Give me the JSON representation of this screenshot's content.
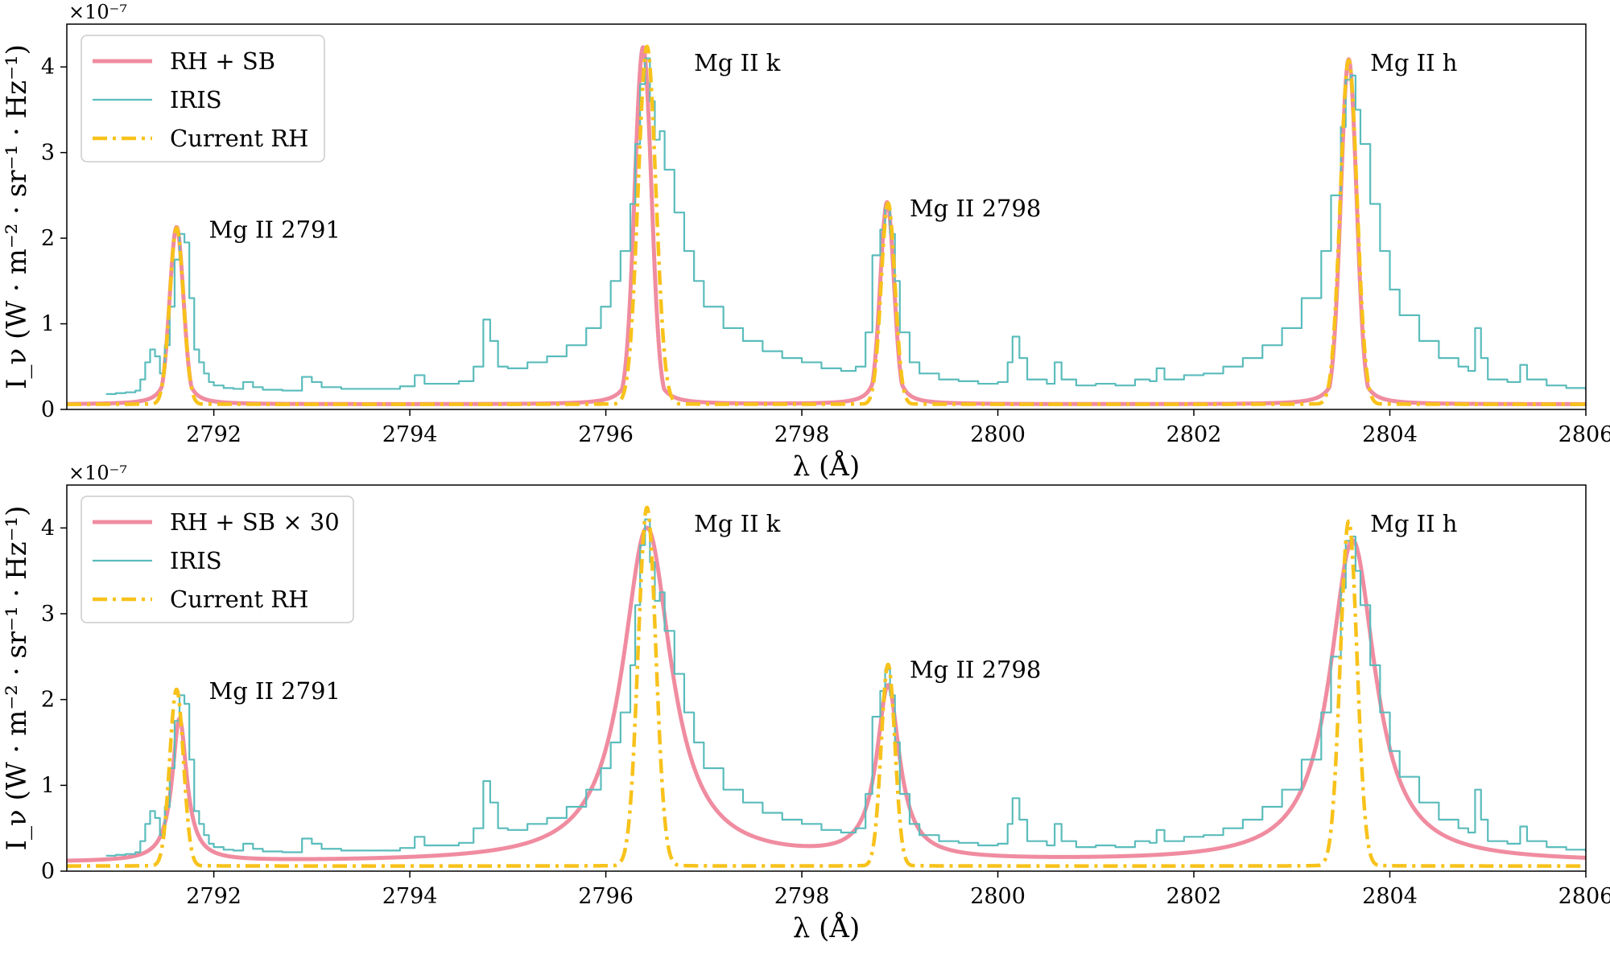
{
  "figure": {
    "xlabel": "λ (Å)",
    "ylabel": "I_ν (W · m⁻² · sr⁻¹ · Hz⁻¹)",
    "multiplier": "×10⁻⁷"
  },
  "chart_data": [
    {
      "type": "line",
      "xlim": [
        2790.5,
        2806
      ],
      "ylim": [
        0,
        4.5
      ],
      "y_scale_factor": "1e-7",
      "xticks": [
        2792,
        2794,
        2796,
        2798,
        2800,
        2802,
        2804,
        2806
      ],
      "yticks": [
        0,
        1,
        2,
        3,
        4
      ],
      "legend_position": "upper-left",
      "annotations": [
        {
          "text": "Mg II 2791",
          "x": 2791.95,
          "y": 2.1
        },
        {
          "text": "Mg II k",
          "x": 2796.9,
          "y": 4.05
        },
        {
          "text": "Mg II 2798",
          "x": 2799.1,
          "y": 2.35
        },
        {
          "text": "Mg II h",
          "x": 2803.8,
          "y": 4.05
        }
      ],
      "series": [
        {
          "name": "RH + SB",
          "color": "#f08ca0",
          "style": "solid",
          "width": 5,
          "model": {
            "base": 0.06,
            "fwhm_scale": 1,
            "lines": [
              {
                "x0": 2791.62,
                "amp": 2.07,
                "g": 0.05,
                "s": 0.07
              },
              {
                "x0": 2796.38,
                "amp": 4.17,
                "g": 0.045,
                "s": 0.085
              },
              {
                "x0": 2798.87,
                "amp": 2.36,
                "g": 0.05,
                "s": 0.07
              },
              {
                "x0": 2803.58,
                "amp": 4.03,
                "g": 0.045,
                "s": 0.08
              }
            ]
          }
        },
        {
          "name": "IRIS",
          "color": "#5bbcbc",
          "style": "step",
          "width": 2.2,
          "data_ref": "iris"
        },
        {
          "name": "Current RH",
          "color": "#f7c21a",
          "style": "dashdot",
          "width": 4.5,
          "model": {
            "base": 0.06,
            "fwhm_scale": 1,
            "lines": [
              {
                "x0": 2791.62,
                "amp": 2.06,
                "g": 0.012,
                "s": 0.07
              },
              {
                "x0": 2796.42,
                "amp": 4.18,
                "g": 0.012,
                "s": 0.09
              },
              {
                "x0": 2798.88,
                "amp": 2.35,
                "g": 0.012,
                "s": 0.07
              },
              {
                "x0": 2803.58,
                "amp": 4.02,
                "g": 0.012,
                "s": 0.085
              }
            ]
          }
        }
      ]
    },
    {
      "type": "line",
      "xlim": [
        2790.5,
        2806
      ],
      "ylim": [
        0,
        4.5
      ],
      "y_scale_factor": "1e-7",
      "xticks": [
        2792,
        2794,
        2796,
        2798,
        2800,
        2802,
        2804,
        2806
      ],
      "yticks": [
        0,
        1,
        2,
        3,
        4
      ],
      "legend_position": "upper-left",
      "annotations": [
        {
          "text": "Mg II 2791",
          "x": 2791.95,
          "y": 2.1
        },
        {
          "text": "Mg II k",
          "x": 2796.9,
          "y": 4.05
        },
        {
          "text": "Mg II 2798",
          "x": 2799.1,
          "y": 2.35
        },
        {
          "text": "Mg II h",
          "x": 2803.8,
          "y": 4.05
        }
      ],
      "series": [
        {
          "name": "RH + SB × 30",
          "color": "#f08ca0",
          "style": "solid",
          "width": 5,
          "model": {
            "base": 0.1,
            "fwhm_scale": 1,
            "lines": [
              {
                "x0": 2791.65,
                "amp": 1.66,
                "g": 0.09,
                "s": 0.04
              },
              {
                "x0": 2796.42,
                "amp": 3.89,
                "g": 0.3,
                "s": 0.05
              },
              {
                "x0": 2798.88,
                "amp": 2.0,
                "g": 0.14,
                "s": 0.04
              },
              {
                "x0": 2803.62,
                "amp": 3.75,
                "g": 0.28,
                "s": 0.05
              }
            ]
          }
        },
        {
          "name": "IRIS",
          "color": "#5bbcbc",
          "style": "step",
          "width": 2.2,
          "data_ref": "iris"
        },
        {
          "name": "Current RH",
          "color": "#f7c21a",
          "style": "dashdot",
          "width": 4.5,
          "model": {
            "base": 0.06,
            "fwhm_scale": 1,
            "lines": [
              {
                "x0": 2791.62,
                "amp": 2.06,
                "g": 0.012,
                "s": 0.07
              },
              {
                "x0": 2796.42,
                "amp": 4.18,
                "g": 0.012,
                "s": 0.09
              },
              {
                "x0": 2798.88,
                "amp": 2.35,
                "g": 0.012,
                "s": 0.07
              },
              {
                "x0": 2803.58,
                "amp": 4.02,
                "g": 0.012,
                "s": 0.085
              }
            ]
          }
        }
      ]
    }
  ],
  "iris": [
    [
      2790.9,
      0.18
    ],
    [
      2791.0,
      0.19
    ],
    [
      2791.1,
      0.2
    ],
    [
      2791.2,
      0.22
    ],
    [
      2791.25,
      0.35
    ],
    [
      2791.3,
      0.55
    ],
    [
      2791.35,
      0.7
    ],
    [
      2791.4,
      0.62
    ],
    [
      2791.45,
      0.42
    ],
    [
      2791.5,
      0.75
    ],
    [
      2791.55,
      1.2
    ],
    [
      2791.6,
      1.75
    ],
    [
      2791.65,
      2.05
    ],
    [
      2791.7,
      1.95
    ],
    [
      2791.75,
      1.3
    ],
    [
      2791.8,
      0.7
    ],
    [
      2791.85,
      0.55
    ],
    [
      2791.9,
      0.42
    ],
    [
      2791.95,
      0.32
    ],
    [
      2792.0,
      0.28
    ],
    [
      2792.1,
      0.25
    ],
    [
      2792.2,
      0.24
    ],
    [
      2792.3,
      0.32
    ],
    [
      2792.4,
      0.26
    ],
    [
      2792.5,
      0.23
    ],
    [
      2792.7,
      0.22
    ],
    [
      2792.9,
      0.38
    ],
    [
      2793.0,
      0.32
    ],
    [
      2793.1,
      0.26
    ],
    [
      2793.3,
      0.24
    ],
    [
      2793.6,
      0.24
    ],
    [
      2793.9,
      0.27
    ],
    [
      2794.05,
      0.4
    ],
    [
      2794.15,
      0.3
    ],
    [
      2794.3,
      0.3
    ],
    [
      2794.5,
      0.33
    ],
    [
      2794.65,
      0.5
    ],
    [
      2794.75,
      1.05
    ],
    [
      2794.82,
      0.8
    ],
    [
      2794.9,
      0.5
    ],
    [
      2795.0,
      0.48
    ],
    [
      2795.2,
      0.55
    ],
    [
      2795.4,
      0.62
    ],
    [
      2795.6,
      0.75
    ],
    [
      2795.8,
      0.95
    ],
    [
      2795.95,
      1.2
    ],
    [
      2796.05,
      1.5
    ],
    [
      2796.15,
      1.85
    ],
    [
      2796.25,
      2.4
    ],
    [
      2796.3,
      3.1
    ],
    [
      2796.35,
      3.8
    ],
    [
      2796.4,
      4.1
    ],
    [
      2796.45,
      3.6
    ],
    [
      2796.5,
      3.15
    ],
    [
      2796.55,
      3.25
    ],
    [
      2796.6,
      2.8
    ],
    [
      2796.7,
      2.3
    ],
    [
      2796.8,
      1.85
    ],
    [
      2796.9,
      1.5
    ],
    [
      2797.0,
      1.2
    ],
    [
      2797.2,
      0.95
    ],
    [
      2797.4,
      0.8
    ],
    [
      2797.6,
      0.68
    ],
    [
      2797.8,
      0.6
    ],
    [
      2798.0,
      0.55
    ],
    [
      2798.2,
      0.48
    ],
    [
      2798.4,
      0.45
    ],
    [
      2798.55,
      0.5
    ],
    [
      2798.65,
      0.9
    ],
    [
      2798.72,
      1.8
    ],
    [
      2798.8,
      2.1
    ],
    [
      2798.85,
      2.35
    ],
    [
      2798.9,
      2.05
    ],
    [
      2798.95,
      1.5
    ],
    [
      2799.0,
      0.9
    ],
    [
      2799.1,
      0.55
    ],
    [
      2799.2,
      0.42
    ],
    [
      2799.4,
      0.35
    ],
    [
      2799.6,
      0.33
    ],
    [
      2799.8,
      0.3
    ],
    [
      2800.0,
      0.32
    ],
    [
      2800.1,
      0.55
    ],
    [
      2800.15,
      0.85
    ],
    [
      2800.22,
      0.6
    ],
    [
      2800.3,
      0.35
    ],
    [
      2800.5,
      0.3
    ],
    [
      2800.58,
      0.55
    ],
    [
      2800.65,
      0.35
    ],
    [
      2800.8,
      0.28
    ],
    [
      2801.0,
      0.3
    ],
    [
      2801.2,
      0.28
    ],
    [
      2801.4,
      0.35
    ],
    [
      2801.55,
      0.33
    ],
    [
      2801.62,
      0.48
    ],
    [
      2801.7,
      0.35
    ],
    [
      2801.9,
      0.4
    ],
    [
      2802.1,
      0.42
    ],
    [
      2802.3,
      0.5
    ],
    [
      2802.5,
      0.6
    ],
    [
      2802.7,
      0.75
    ],
    [
      2802.9,
      0.95
    ],
    [
      2803.1,
      1.3
    ],
    [
      2803.3,
      1.85
    ],
    [
      2803.4,
      2.5
    ],
    [
      2803.5,
      3.3
    ],
    [
      2803.55,
      3.85
    ],
    [
      2803.6,
      3.9
    ],
    [
      2803.65,
      3.5
    ],
    [
      2803.7,
      3.1
    ],
    [
      2803.8,
      2.4
    ],
    [
      2803.9,
      1.85
    ],
    [
      2804.0,
      1.4
    ],
    [
      2804.1,
      1.1
    ],
    [
      2804.3,
      0.8
    ],
    [
      2804.5,
      0.6
    ],
    [
      2804.7,
      0.5
    ],
    [
      2804.8,
      0.45
    ],
    [
      2804.87,
      0.95
    ],
    [
      2804.93,
      0.6
    ],
    [
      2805.0,
      0.35
    ],
    [
      2805.2,
      0.32
    ],
    [
      2805.33,
      0.52
    ],
    [
      2805.4,
      0.35
    ],
    [
      2805.6,
      0.28
    ],
    [
      2805.8,
      0.25
    ],
    [
      2806.0,
      0.22
    ]
  ]
}
